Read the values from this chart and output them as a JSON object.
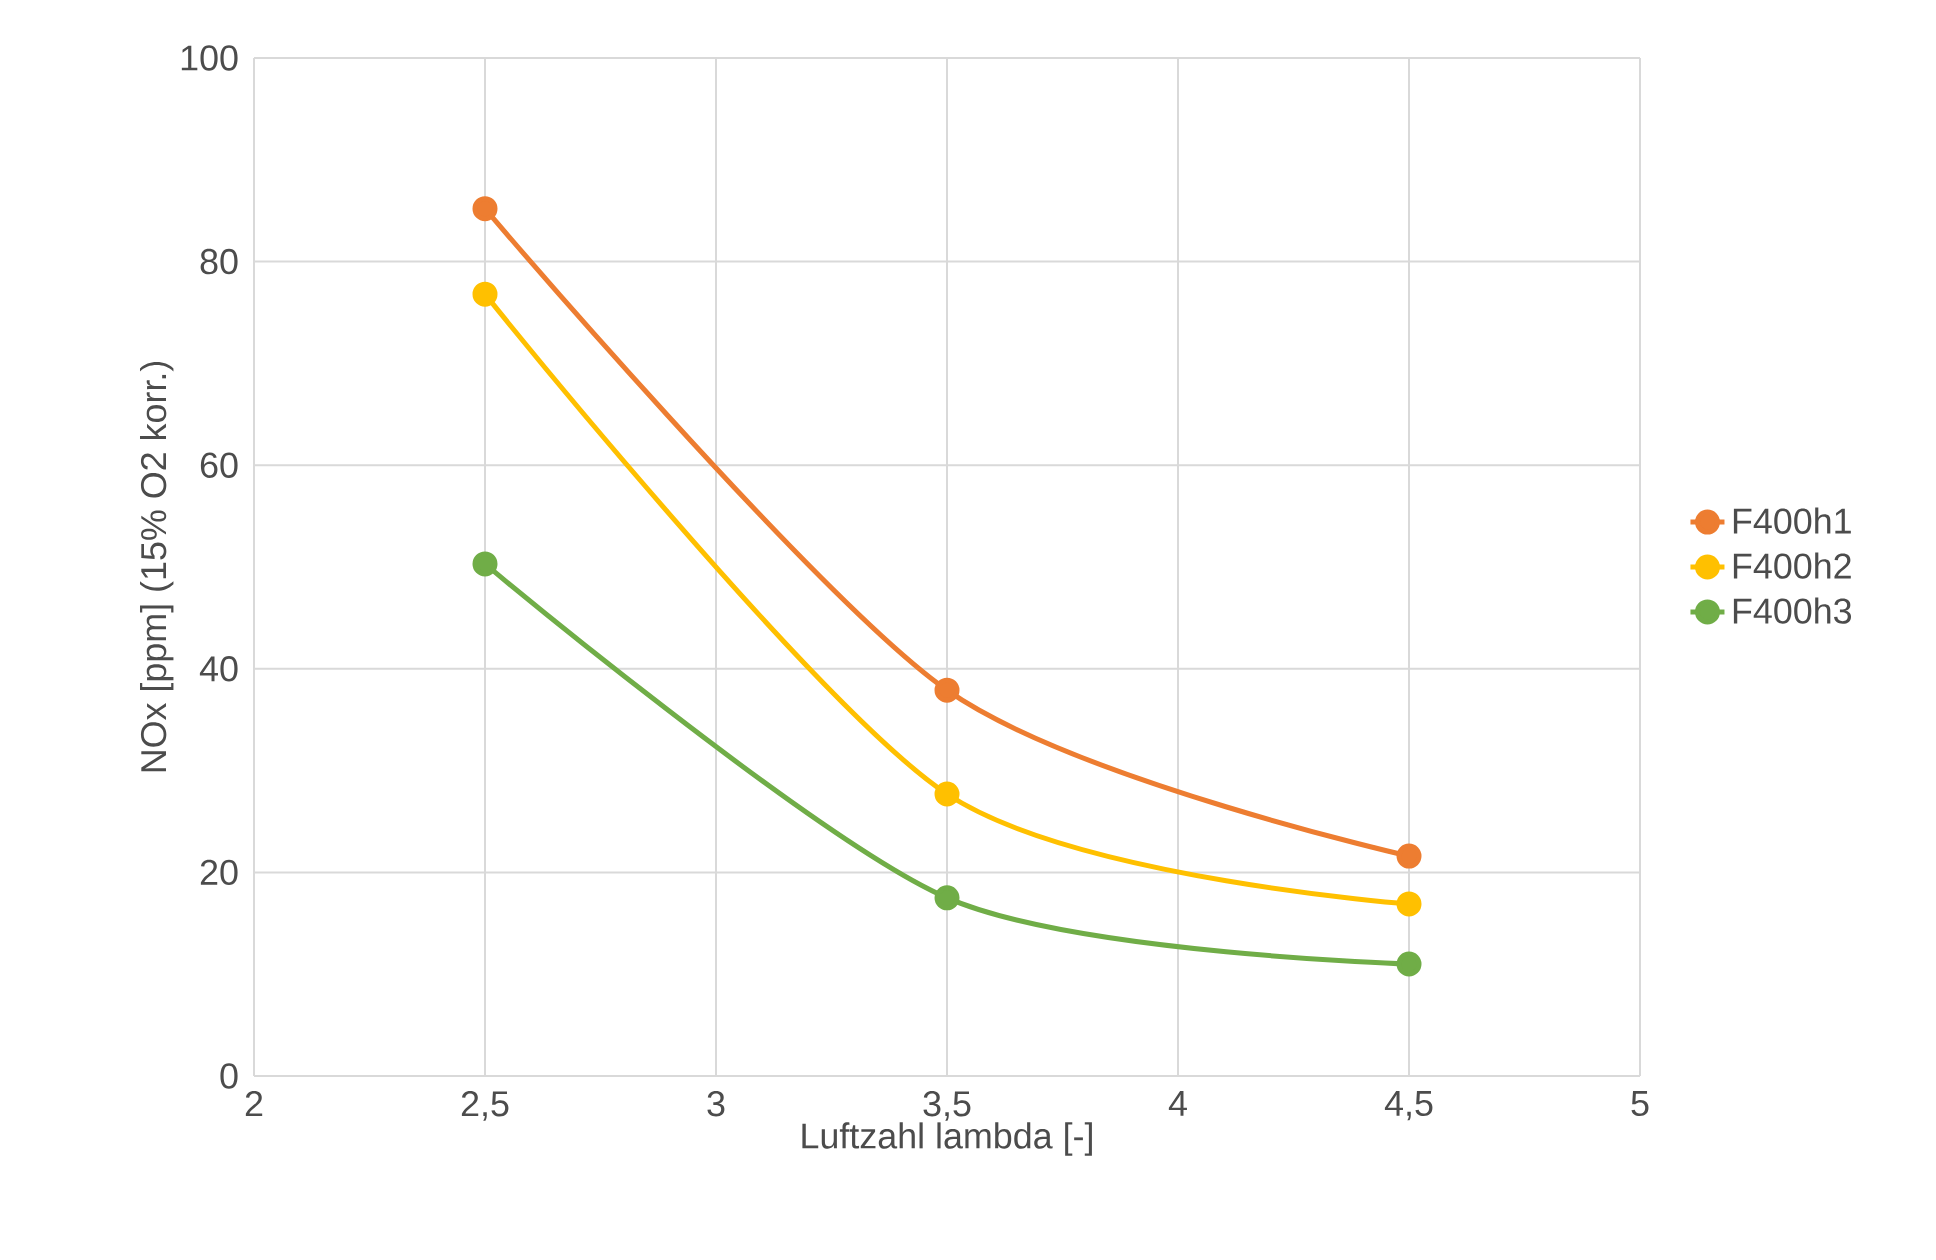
{
  "chart_data": {
    "type": "line",
    "xlabel": "Luftzahl lambda [-]",
    "ylabel": "NOx [ppm] (15% O2 korr.)",
    "x": [
      2.5,
      3.5,
      4.5
    ],
    "series": [
      {
        "name": "F400h1",
        "color": "#ed7d31",
        "values": [
          85.2,
          37.9,
          21.6
        ]
      },
      {
        "name": "F400h2",
        "color": "#ffc000",
        "values": [
          76.8,
          27.7,
          16.9
        ]
      },
      {
        "name": "F400h3",
        "color": "#70ad47",
        "values": [
          50.3,
          17.5,
          11.0
        ]
      }
    ],
    "xlim": [
      2,
      5
    ],
    "ylim": [
      0,
      100
    ],
    "xticks": [
      2,
      {
        "value": 2.5,
        "label": "2,5"
      },
      3,
      {
        "value": 3.5,
        "label": "3,5"
      },
      4,
      {
        "value": 4.5,
        "label": "4,5"
      },
      5
    ],
    "yticks": [
      0,
      20,
      40,
      60,
      80,
      100
    ],
    "grid": true,
    "legend": "right",
    "marker": "circle",
    "line_style": "solid"
  }
}
